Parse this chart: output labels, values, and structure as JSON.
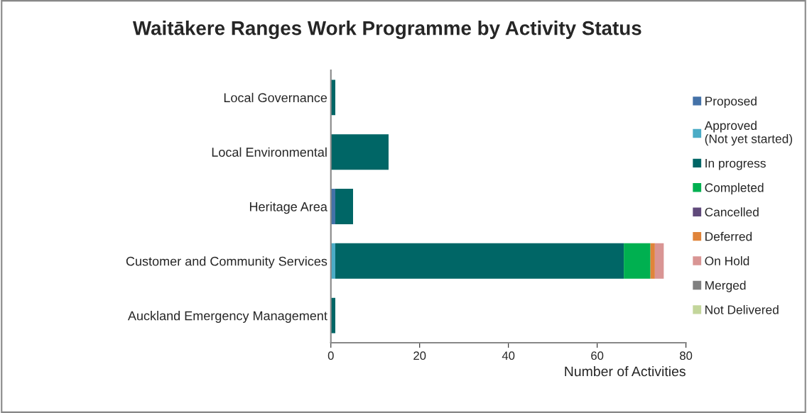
{
  "chart_data": {
    "type": "bar",
    "orientation": "horizontal",
    "stacked": true,
    "title": "Waitākere Ranges Work Programme by Activity Status",
    "xlabel": "Number of Activities",
    "categories": [
      "Local Governance",
      "Local Environmental",
      "Heritage Area",
      "Customer and Community Services",
      "Auckland Emergency Management"
    ],
    "series": [
      {
        "name": "Proposed",
        "color": "#4472a8",
        "values": [
          0,
          0,
          1,
          0,
          0
        ]
      },
      {
        "name": "Approved\n(Not yet started)",
        "color": "#4bacc6",
        "values": [
          0,
          0,
          0,
          1,
          0
        ]
      },
      {
        "name": "In progress",
        "color": "#006666",
        "values": [
          1,
          13,
          4,
          65,
          1
        ]
      },
      {
        "name": "Completed",
        "color": "#00b050",
        "values": [
          0,
          0,
          0,
          6,
          0
        ]
      },
      {
        "name": "Cancelled",
        "color": "#604a7b",
        "values": [
          0,
          0,
          0,
          0,
          0
        ]
      },
      {
        "name": "Deferred",
        "color": "#e0843a",
        "values": [
          0,
          0,
          0,
          1,
          0
        ]
      },
      {
        "name": "On Hold",
        "color": "#d99594",
        "values": [
          0,
          0,
          0,
          2,
          0
        ]
      },
      {
        "name": "Merged",
        "color": "#808080",
        "values": [
          0,
          0,
          0,
          0,
          0
        ]
      },
      {
        "name": "Not Delivered",
        "color": "#c3d69b",
        "values": [
          0,
          0,
          0,
          0,
          0
        ]
      }
    ],
    "xlim": [
      0,
      80
    ],
    "xticks": [
      0,
      20,
      40,
      60,
      80
    ],
    "grid": false,
    "legend": "right"
  }
}
